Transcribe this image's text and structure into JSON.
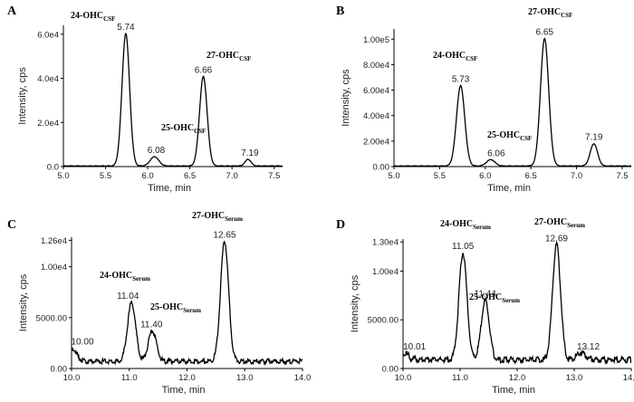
{
  "chart_data": [
    {
      "id": "A",
      "panel_label": "A",
      "type": "line",
      "xlabel": "Time, min",
      "ylabel": "Intensity, cps",
      "xlim": [
        5.0,
        7.6
      ],
      "ylim": [
        0,
        64000
      ],
      "xticks": [
        5.0,
        5.5,
        6.0,
        6.5,
        7.0,
        7.5
      ],
      "xtick_labels": [
        "5.0",
        "5.5",
        "6.0",
        "6.5",
        "7.0",
        "7.5"
      ],
      "yticks": [
        0,
        20000,
        40000,
        60000
      ],
      "ytick_labels": [
        "0.0",
        "2.0e4",
        "4.0e4",
        "6.0e4"
      ],
      "baseline": 300,
      "peaks": [
        {
          "rt": 5.74,
          "height": 60000,
          "width": 0.045,
          "label": "5.74"
        },
        {
          "rt": 6.08,
          "height": 4200,
          "width": 0.05,
          "label": "6.08"
        },
        {
          "rt": 6.66,
          "height": 40500,
          "width": 0.045,
          "label": "6.66"
        },
        {
          "rt": 7.19,
          "height": 3000,
          "width": 0.035,
          "label": "7.19"
        }
      ],
      "annotations": [
        {
          "main": "24-OHC",
          "sub": "CSF"
        },
        {
          "main": "25-OHC",
          "sub": "CSF"
        },
        {
          "main": "27-OHC",
          "sub": "CSF"
        }
      ]
    },
    {
      "id": "B",
      "panel_label": "B",
      "type": "line",
      "xlabel": "Time, min",
      "ylabel": "Intensity, cps",
      "xlim": [
        5.0,
        7.6
      ],
      "ylim": [
        0,
        108000
      ],
      "xticks": [
        5.0,
        5.5,
        6.0,
        6.5,
        7.0,
        7.5
      ],
      "xtick_labels": [
        "5.0",
        "5.5",
        "6.0",
        "6.5",
        "7.0",
        "7.5"
      ],
      "yticks": [
        0,
        20000,
        40000,
        60000,
        80000,
        100000
      ],
      "ytick_labels": [
        "0.00",
        "2.00e4",
        "4.00e4",
        "6.00e4",
        "8.00e4",
        "1.00e5"
      ],
      "baseline": 500,
      "peaks": [
        {
          "rt": 5.73,
          "height": 63000,
          "width": 0.045,
          "label": "5.73"
        },
        {
          "rt": 6.06,
          "height": 5000,
          "width": 0.045,
          "label": "6.06"
        },
        {
          "rt": 6.65,
          "height": 100000,
          "width": 0.045,
          "label": "6.65"
        },
        {
          "rt": 7.19,
          "height": 17500,
          "width": 0.04,
          "label": "7.19"
        }
      ],
      "annotations": [
        {
          "main": "24-OHC",
          "sub": "CSF"
        },
        {
          "main": "25-OHC",
          "sub": "CSF"
        },
        {
          "main": "27-OHC",
          "sub": "CSF"
        }
      ]
    },
    {
      "id": "C",
      "panel_label": "C",
      "type": "line",
      "xlabel": "Time, min",
      "ylabel": "Intensity, cps",
      "xlim": [
        10.0,
        14.0
      ],
      "ylim": [
        0,
        12900
      ],
      "xticks": [
        10.0,
        11.0,
        12.0,
        13.0,
        14.0
      ],
      "xtick_labels": [
        "10.0",
        "11.0",
        "12.0",
        "13.0",
        "14.0"
      ],
      "yticks": [
        0,
        5000,
        10000,
        12600
      ],
      "ytick_labels": [
        "0.00",
        "5000.00",
        "1.00e4",
        "1.26e4"
      ],
      "baseline": 700,
      "peaks": [
        {
          "rt": 10.0,
          "height": 1300,
          "width": 0.08,
          "label": "10.00"
        },
        {
          "rt": 11.04,
          "height": 5800,
          "width": 0.07,
          "label": "11.04"
        },
        {
          "rt": 11.4,
          "height": 3000,
          "width": 0.07,
          "label": "11.40"
        },
        {
          "rt": 12.65,
          "height": 11800,
          "width": 0.07,
          "label": "12.65"
        }
      ],
      "annotations": [
        {
          "main": "24-OHC",
          "sub": "Serum"
        },
        {
          "main": "25-OHC",
          "sub": "Serum"
        },
        {
          "main": "27-OHC",
          "sub": "Serum"
        }
      ]
    },
    {
      "id": "D",
      "panel_label": "D",
      "type": "line",
      "xlabel": "Time, min",
      "ylabel": "Intensity, cps",
      "xlim": [
        10.0,
        14.0
      ],
      "ylim": [
        0,
        13300
      ],
      "xticks": [
        10.0,
        11.0,
        12.0,
        13.0,
        14.0
      ],
      "xtick_labels": [
        "10.0",
        "11.0",
        "12.0",
        "13.0",
        "14.0"
      ],
      "yticks": [
        0,
        5000,
        10000,
        13000
      ],
      "ytick_labels": [
        "0.00",
        "5000.00",
        "1.00e4",
        "1.30e4"
      ],
      "baseline": 900,
      "peaks": [
        {
          "rt": 10.01,
          "height": 700,
          "width": 0.08,
          "label": "10.01"
        },
        {
          "rt": 11.05,
          "height": 11000,
          "width": 0.07,
          "label": "11.05"
        },
        {
          "rt": 11.44,
          "height": 6100,
          "width": 0.07,
          "label": "11.44"
        },
        {
          "rt": 12.69,
          "height": 11800,
          "width": 0.07,
          "label": "12.69"
        },
        {
          "rt": 13.12,
          "height": 700,
          "width": 0.08,
          "label": "13.12"
        }
      ],
      "annotations": [
        {
          "main": "24-OHC",
          "sub": "Serum"
        },
        {
          "main": "25-OHC",
          "sub": "Serum"
        },
        {
          "main": "27-OHC",
          "sub": "Serum"
        }
      ]
    }
  ]
}
